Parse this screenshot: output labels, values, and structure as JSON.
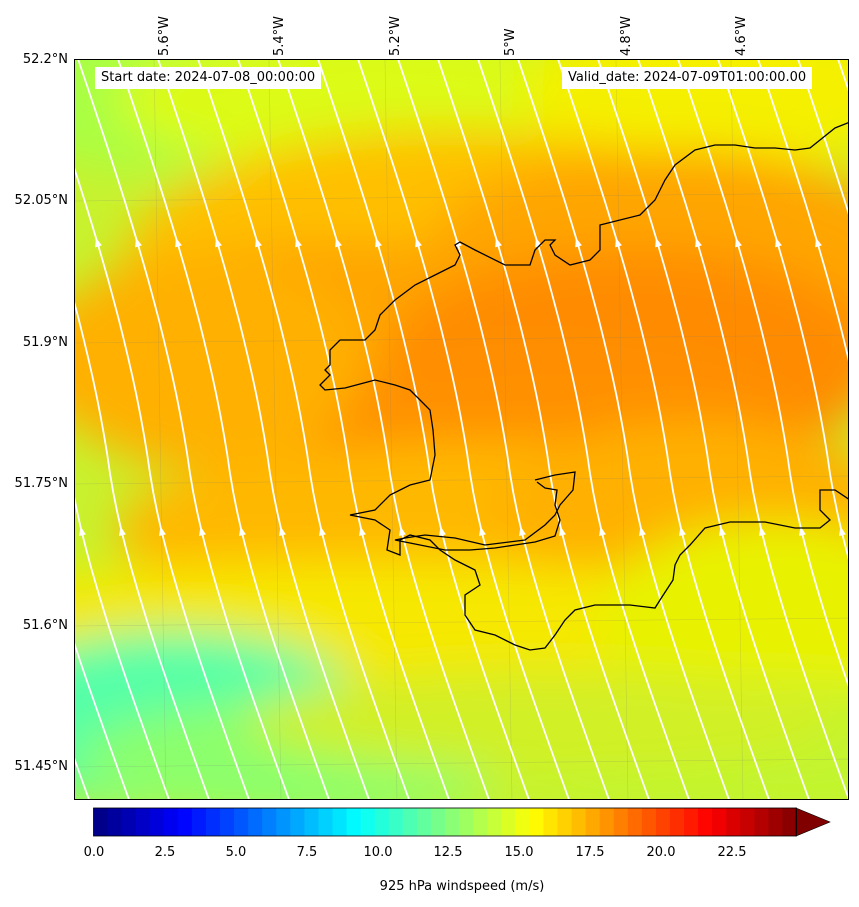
{
  "header": {
    "start_date": "Start date: 2024-07-08_00:00:00",
    "valid_date": "Valid_date: 2024-07-09T01:00:00.00"
  },
  "axes": {
    "longitude_labels": [
      "5.6°W",
      "5.4°W",
      "5.2°W",
      "5°W",
      "4.8°W",
      "4.6°W"
    ],
    "latitude_labels": [
      "52.2°N",
      "52.05°N",
      "51.9°N",
      "51.75°N",
      "51.6°N",
      "51.45°N"
    ]
  },
  "colorbar": {
    "label": "925 hPa windspeed (m/s)",
    "tick_labels": [
      "0.0",
      "2.5",
      "5.0",
      "7.5",
      "10.0",
      "12.5",
      "15.0",
      "17.5",
      "20.0",
      "22.5"
    ],
    "min": 0,
    "max": 25,
    "colormap": "jet",
    "extend": "max"
  },
  "chart_data": {
    "type": "heatmap",
    "variable": "windspeed",
    "units": "m/s",
    "lon_range": [
      -5.7,
      -4.48
    ],
    "lat_range": [
      51.42,
      52.2
    ],
    "grid": true,
    "coastline_color": "#000000",
    "streamline_color": "#ffffff"
  }
}
